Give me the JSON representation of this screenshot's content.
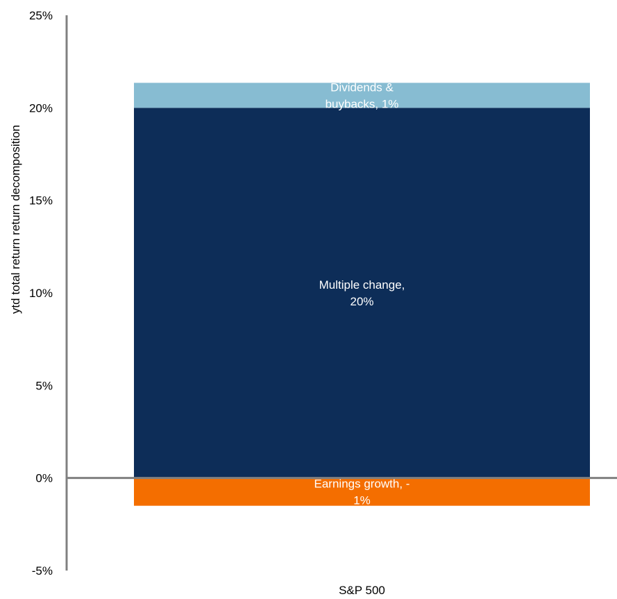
{
  "chart_data": {
    "type": "bar",
    "stacked": true,
    "categories": [
      "S&P 500"
    ],
    "ylabel": "ytd total return return decomposition",
    "ylim": [
      -5,
      25
    ],
    "yticks": [
      -5,
      0,
      5,
      10,
      15,
      20,
      25
    ],
    "ytick_labels": [
      "-5%",
      "0%",
      "5%",
      "10%",
      "15%",
      "20%",
      "25%"
    ],
    "grid": false,
    "legend": "none",
    "series": [
      {
        "key": "multiple",
        "values": [
          20
        ],
        "color": "#0d2d58",
        "label_lines": [
          "Multiple change,",
          "20%"
        ]
      },
      {
        "key": "dividends",
        "values": [
          1.35
        ],
        "color": "#87bcd2",
        "label_lines": [
          "Dividends &",
          "buybacks, 1%"
        ]
      },
      {
        "key": "earnings",
        "values": [
          -1.5
        ],
        "color": "#f46e00",
        "label_lines": [
          "Earnings growth, -",
          "1%"
        ]
      }
    ],
    "axis_color": "#808080"
  }
}
